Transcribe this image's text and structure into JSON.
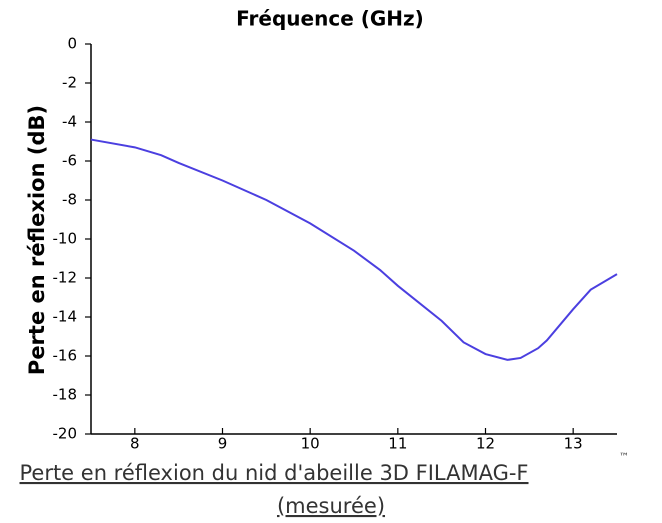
{
  "chart_data": {
    "type": "line",
    "title": "Fréquence (GHz)",
    "y_label": "Perte en réflexion (dB)",
    "caption": [
      "Perte en réflexion du nid d'abeille 3D FILAMAG-F",
      "(mesurée)"
    ],
    "caption_mark": "™",
    "x": [
      7.5,
      8,
      8.3,
      8.5,
      9,
      9.5,
      10,
      10.5,
      10.8,
      11,
      11.5,
      11.75,
      12,
      12.25,
      12.4,
      12.6,
      12.7,
      13,
      13.2,
      13.5
    ],
    "series": [
      {
        "name": "Perte en réflexion",
        "color": "#4b3fe0",
        "values": [
          -4.9,
          -5.3,
          -5.7,
          -6.1,
          -7.0,
          -8.0,
          -9.2,
          -10.6,
          -11.6,
          -12.4,
          -14.2,
          -15.3,
          -15.9,
          -16.2,
          -16.1,
          -15.6,
          -15.2,
          -13.6,
          -12.6,
          -11.8
        ]
      }
    ],
    "xlim": [
      7.5,
      13.5
    ],
    "xticks": [
      8,
      9,
      10,
      11,
      12,
      13
    ],
    "ylim": [
      -20,
      0
    ],
    "yticks": [
      0,
      -2,
      -4,
      -6,
      -8,
      -10,
      -12,
      -14,
      -16,
      -18,
      -20
    ],
    "grid": false,
    "legend": false
  }
}
